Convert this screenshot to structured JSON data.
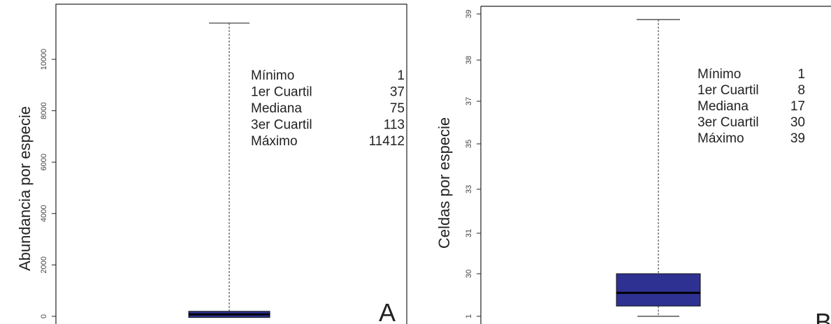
{
  "chart_data": [
    {
      "type": "box",
      "ylabel": "Abundancia por especie",
      "yticks": [
        "0",
        "2000",
        "4000",
        "6000",
        "8000",
        "10000"
      ],
      "box": {
        "min": 1,
        "q1": 37,
        "median": 75,
        "q3": 113,
        "max": 11412
      },
      "box_color": "#2e3192",
      "panel_label": "A",
      "stats": [
        {
          "label": "Mínimo",
          "value": "1"
        },
        {
          "label": "1er Cuartil",
          "value": "37"
        },
        {
          "label": "Mediana",
          "value": "75"
        },
        {
          "label": "3er Cuartil",
          "value": "113"
        },
        {
          "label": "Máximo",
          "value": "11412"
        }
      ]
    },
    {
      "type": "box",
      "ylabel": "Celdas por especie",
      "yticks": [
        "1",
        "30",
        "31",
        "33",
        "35",
        "37",
        "38",
        "39"
      ],
      "box": {
        "min": 1,
        "q1": 8,
        "median": 17,
        "q3": 30,
        "max": 39
      },
      "box_color": "#2e3192",
      "panel_label": "B",
      "stats": [
        {
          "label": "Mínimo",
          "value": "1"
        },
        {
          "label": "1er Cuartil",
          "value": "8"
        },
        {
          "label": "Mediana",
          "value": "17"
        },
        {
          "label": "3er Cuartil",
          "value": "30"
        },
        {
          "label": "Máximo",
          "value": "39"
        }
      ]
    }
  ]
}
